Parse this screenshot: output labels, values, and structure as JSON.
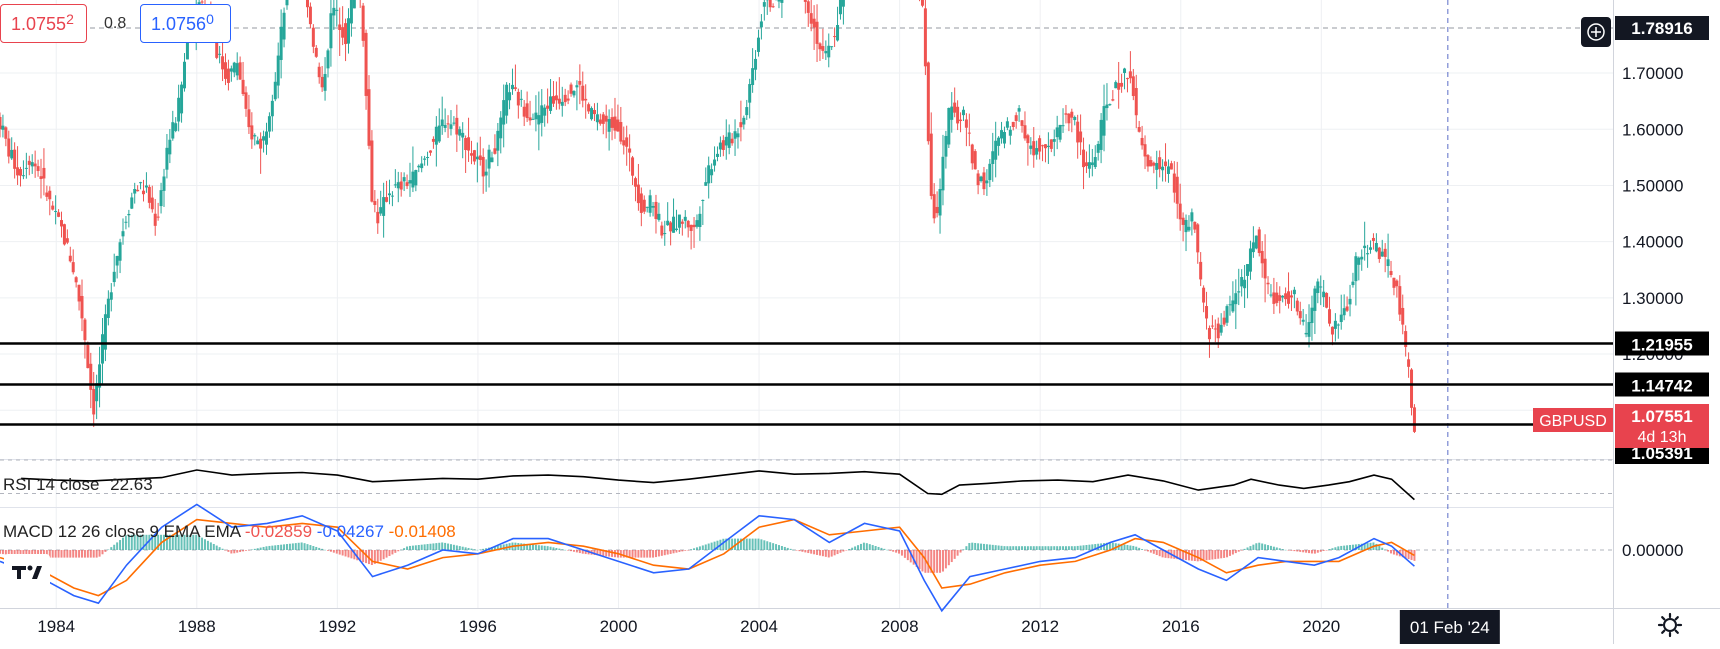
{
  "header": {
    "bid": "1.0755",
    "bid_sup": "2",
    "spread": "0.8",
    "ask": "1.0756",
    "ask_sup": "0"
  },
  "symbol_tag": {
    "symbol": "GBPUSD",
    "price": "1.07551",
    "countdown": "4d 13h"
  },
  "crosshair_price": "1.78916",
  "date_tag": "01 Feb '24",
  "colors": {
    "up": "#26a69a",
    "down": "#ef5350",
    "rsi": "#000000",
    "macd": "#2962ff",
    "signal": "#ff6d00",
    "level_tag_bg": "#000000",
    "symbol_tag_bg": "#e8434e"
  },
  "indicators": {
    "rsi": {
      "name": "RSI",
      "params": "14 close",
      "value": "22.63"
    },
    "macd": {
      "name": "MACD",
      "params": "12 26 close 9 EMA EMA",
      "hist": "-0.02859",
      "macd": "-0.04267",
      "signal": "-0.01408"
    }
  },
  "chart_data": {
    "type": "candlestick",
    "symbol": "GBPUSD",
    "interval": "monthly",
    "x_tick_labels": [
      "1984",
      "1988",
      "1992",
      "1996",
      "2000",
      "2004",
      "2008",
      "2012",
      "2016",
      "2020"
    ],
    "x_ticks": [
      1984,
      1988,
      1992,
      1996,
      2000,
      2004,
      2008,
      2012,
      2016,
      2020
    ],
    "xlim": [
      1982.4,
      2028.3
    ],
    "price_axis": {
      "ticks": [
        1.1,
        1.2,
        1.3,
        1.4,
        1.5,
        1.6,
        1.7
      ],
      "tick_labels": [
        "1.10000",
        "1.20000",
        "1.30000",
        "1.40000",
        "1.50000",
        "1.60000",
        "1.70000"
      ],
      "ylim": [
        1.015,
        1.83
      ]
    },
    "horizontal_levels": [
      "1.21955",
      "1.14742",
      "1.05391"
    ],
    "last_bar_x": 2022.65,
    "time_marker_x": 2023.6,
    "price_path": [
      [
        1982.4,
        1.62
      ],
      [
        1982.7,
        1.56
      ],
      [
        1983.0,
        1.52
      ],
      [
        1983.3,
        1.55
      ],
      [
        1983.6,
        1.52
      ],
      [
        1983.9,
        1.46
      ],
      [
        1984.2,
        1.42
      ],
      [
        1984.5,
        1.36
      ],
      [
        1984.8,
        1.26
      ],
      [
        1985.1,
        1.1
      ],
      [
        1985.4,
        1.24
      ],
      [
        1985.7,
        1.36
      ],
      [
        1986.0,
        1.44
      ],
      [
        1986.3,
        1.5
      ],
      [
        1986.6,
        1.49
      ],
      [
        1986.9,
        1.43
      ],
      [
        1987.2,
        1.57
      ],
      [
        1987.5,
        1.63
      ],
      [
        1987.8,
        1.77
      ],
      [
        1988.2,
        1.84
      ],
      [
        1988.4,
        1.82
      ],
      [
        1988.6,
        1.74
      ],
      [
        1988.9,
        1.69
      ],
      [
        1989.2,
        1.72
      ],
      [
        1989.5,
        1.6
      ],
      [
        1989.9,
        1.57
      ],
      [
        1990.3,
        1.7
      ],
      [
        1990.7,
        1.9
      ],
      [
        1990.9,
        1.96
      ],
      [
        1991.3,
        1.78
      ],
      [
        1991.6,
        1.66
      ],
      [
        1991.9,
        1.82
      ],
      [
        1992.3,
        1.76
      ],
      [
        1992.6,
        1.9
      ],
      [
        1992.8,
        1.75
      ],
      [
        1993.0,
        1.49
      ],
      [
        1993.2,
        1.44
      ],
      [
        1993.5,
        1.49
      ],
      [
        1993.9,
        1.5
      ],
      [
        1994.3,
        1.52
      ],
      [
        1994.7,
        1.57
      ],
      [
        1995.1,
        1.62
      ],
      [
        1995.5,
        1.6
      ],
      [
        1995.9,
        1.55
      ],
      [
        1996.2,
        1.53
      ],
      [
        1996.6,
        1.58
      ],
      [
        1996.9,
        1.68
      ],
      [
        1997.3,
        1.64
      ],
      [
        1997.7,
        1.62
      ],
      [
        1998.1,
        1.65
      ],
      [
        1998.5,
        1.66
      ],
      [
        1998.9,
        1.68
      ],
      [
        1999.2,
        1.63
      ],
      [
        1999.6,
        1.61
      ],
      [
        2000.0,
        1.61
      ],
      [
        2000.3,
        1.56
      ],
      [
        2000.7,
        1.46
      ],
      [
        2001.0,
        1.47
      ],
      [
        2001.3,
        1.42
      ],
      [
        2001.6,
        1.43
      ],
      [
        2001.9,
        1.44
      ],
      [
        2002.2,
        1.42
      ],
      [
        2002.6,
        1.53
      ],
      [
        2002.9,
        1.57
      ],
      [
        2003.2,
        1.58
      ],
      [
        2003.6,
        1.62
      ],
      [
        2003.9,
        1.72
      ],
      [
        2004.2,
        1.84
      ],
      [
        2004.5,
        1.82
      ],
      [
        2004.8,
        1.87
      ],
      [
        2005.1,
        1.9
      ],
      [
        2005.4,
        1.83
      ],
      [
        2005.7,
        1.76
      ],
      [
        2005.9,
        1.72
      ],
      [
        2006.2,
        1.77
      ],
      [
        2006.5,
        1.87
      ],
      [
        2006.9,
        1.98
      ],
      [
        2007.3,
        2.0
      ],
      [
        2007.7,
        2.03
      ],
      [
        2007.9,
        2.05
      ],
      [
        2008.3,
        1.98
      ],
      [
        2008.6,
        1.88
      ],
      [
        2008.75,
        1.76
      ],
      [
        2008.85,
        1.6
      ],
      [
        2008.95,
        1.46
      ],
      [
        2009.1,
        1.45
      ],
      [
        2009.3,
        1.55
      ],
      [
        2009.5,
        1.66
      ],
      [
        2009.7,
        1.62
      ],
      [
        2009.9,
        1.62
      ],
      [
        2010.2,
        1.52
      ],
      [
        2010.5,
        1.5
      ],
      [
        2010.8,
        1.58
      ],
      [
        2011.1,
        1.6
      ],
      [
        2011.4,
        1.63
      ],
      [
        2011.8,
        1.56
      ],
      [
        2012.1,
        1.58
      ],
      [
        2012.4,
        1.57
      ],
      [
        2012.7,
        1.62
      ],
      [
        2013.0,
        1.62
      ],
      [
        2013.3,
        1.53
      ],
      [
        2013.6,
        1.55
      ],
      [
        2013.9,
        1.64
      ],
      [
        2014.3,
        1.68
      ],
      [
        2014.6,
        1.71
      ],
      [
        2014.8,
        1.6
      ],
      [
        2015.1,
        1.53
      ],
      [
        2015.4,
        1.54
      ],
      [
        2015.8,
        1.52
      ],
      [
        2016.1,
        1.42
      ],
      [
        2016.4,
        1.44
      ],
      [
        2016.6,
        1.33
      ],
      [
        2016.8,
        1.24
      ],
      [
        2017.1,
        1.24
      ],
      [
        2017.4,
        1.28
      ],
      [
        2017.7,
        1.32
      ],
      [
        2017.9,
        1.35
      ],
      [
        2018.2,
        1.41
      ],
      [
        2018.5,
        1.32
      ],
      [
        2018.8,
        1.29
      ],
      [
        2019.1,
        1.3
      ],
      [
        2019.3,
        1.3
      ],
      [
        2019.6,
        1.23
      ],
      [
        2019.9,
        1.32
      ],
      [
        2020.1,
        1.31
      ],
      [
        2020.3,
        1.24
      ],
      [
        2020.5,
        1.25
      ],
      [
        2020.8,
        1.29
      ],
      [
        2021.0,
        1.36
      ],
      [
        2021.3,
        1.39
      ],
      [
        2021.5,
        1.4
      ],
      [
        2021.8,
        1.37
      ],
      [
        2022.0,
        1.35
      ],
      [
        2022.2,
        1.31
      ],
      [
        2022.4,
        1.22
      ],
      [
        2022.55,
        1.16
      ],
      [
        2022.65,
        1.0755
      ]
    ],
    "rsi_series": {
      "name": "RSI 14 close",
      "last_value": 22.63,
      "points": [
        [
          1983.0,
          48
        ],
        [
          1984.0,
          46
        ],
        [
          1985.0,
          45
        ],
        [
          1986.0,
          47
        ],
        [
          1987.0,
          49
        ],
        [
          1988.0,
          58
        ],
        [
          1988.5,
          55
        ],
        [
          1989.0,
          52
        ],
        [
          1990.0,
          54
        ],
        [
          1991.0,
          55
        ],
        [
          1992.0,
          52
        ],
        [
          1993.0,
          44
        ],
        [
          1994.0,
          46
        ],
        [
          1995.0,
          48
        ],
        [
          1996.0,
          47
        ],
        [
          1997.0,
          51
        ],
        [
          1998.0,
          52
        ],
        [
          1999.0,
          50
        ],
        [
          2000.0,
          46
        ],
        [
          2001.0,
          43
        ],
        [
          2002.0,
          47
        ],
        [
          2003.0,
          52
        ],
        [
          2004.0,
          57
        ],
        [
          2005.0,
          53
        ],
        [
          2006.0,
          54
        ],
        [
          2007.0,
          56
        ],
        [
          2008.0,
          53
        ],
        [
          2008.8,
          30
        ],
        [
          2009.2,
          29
        ],
        [
          2009.7,
          40
        ],
        [
          2010.5,
          42
        ],
        [
          2011.5,
          45
        ],
        [
          2012.5,
          46
        ],
        [
          2013.5,
          44
        ],
        [
          2014.5,
          52
        ],
        [
          2015.5,
          45
        ],
        [
          2016.5,
          34
        ],
        [
          2017.5,
          40
        ],
        [
          2018.0,
          47
        ],
        [
          2018.8,
          40
        ],
        [
          2019.5,
          36
        ],
        [
          2020.2,
          40
        ],
        [
          2020.8,
          44
        ],
        [
          2021.5,
          52
        ],
        [
          2022.0,
          47
        ],
        [
          2022.65,
          22.63
        ]
      ]
    },
    "macd_series": {
      "name": "MACD 12 26 close 9 EMA EMA",
      "last_values": {
        "histogram": -0.02859,
        "macd": -0.04267,
        "signal": -0.01408
      },
      "axis_ticks": [
        0.0
      ],
      "axis_labels": [
        "0.00000"
      ],
      "macd_points": [
        [
          1982.4,
          -0.03
        ],
        [
          1983.5,
          -0.07
        ],
        [
          1984.5,
          -0.12
        ],
        [
          1985.2,
          -0.14
        ],
        [
          1986.0,
          -0.04
        ],
        [
          1987.0,
          0.06
        ],
        [
          1988.0,
          0.12
        ],
        [
          1989.0,
          0.06
        ],
        [
          1990.0,
          0.07
        ],
        [
          1991.0,
          0.09
        ],
        [
          1992.0,
          0.05
        ],
        [
          1993.0,
          -0.07
        ],
        [
          1994.0,
          -0.04
        ],
        [
          1995.0,
          0.0
        ],
        [
          1996.0,
          -0.01
        ],
        [
          1997.0,
          0.03
        ],
        [
          1998.0,
          0.03
        ],
        [
          1999.0,
          0.0
        ],
        [
          2000.0,
          -0.03
        ],
        [
          2001.0,
          -0.06
        ],
        [
          2002.0,
          -0.05
        ],
        [
          2003.0,
          0.02
        ],
        [
          2004.0,
          0.09
        ],
        [
          2005.0,
          0.08
        ],
        [
          2006.0,
          0.02
        ],
        [
          2007.0,
          0.07
        ],
        [
          2008.0,
          0.05
        ],
        [
          2008.7,
          -0.08
        ],
        [
          2009.2,
          -0.16
        ],
        [
          2010.0,
          -0.07
        ],
        [
          2011.0,
          -0.05
        ],
        [
          2012.0,
          -0.03
        ],
        [
          2013.0,
          -0.02
        ],
        [
          2014.0,
          0.02
        ],
        [
          2014.7,
          0.04
        ],
        [
          2015.5,
          0.0
        ],
        [
          2016.5,
          -0.05
        ],
        [
          2017.3,
          -0.08
        ],
        [
          2018.2,
          -0.02
        ],
        [
          2019.0,
          -0.03
        ],
        [
          2019.8,
          -0.04
        ],
        [
          2020.5,
          -0.02
        ],
        [
          2021.5,
          0.03
        ],
        [
          2022.0,
          0.01
        ],
        [
          2022.65,
          -0.04267
        ]
      ],
      "signal_points": [
        [
          1982.4,
          -0.02
        ],
        [
          1983.5,
          -0.05
        ],
        [
          1984.5,
          -0.1
        ],
        [
          1985.2,
          -0.12
        ],
        [
          1986.0,
          -0.08
        ],
        [
          1987.0,
          0.02
        ],
        [
          1988.0,
          0.08
        ],
        [
          1989.0,
          0.07
        ],
        [
          1990.0,
          0.06
        ],
        [
          1991.0,
          0.07
        ],
        [
          1992.0,
          0.06
        ],
        [
          1993.0,
          -0.03
        ],
        [
          1994.0,
          -0.05
        ],
        [
          1995.0,
          -0.02
        ],
        [
          1996.0,
          -0.01
        ],
        [
          1997.0,
          0.01
        ],
        [
          1998.0,
          0.02
        ],
        [
          1999.0,
          0.01
        ],
        [
          2000.0,
          -0.01
        ],
        [
          2001.0,
          -0.04
        ],
        [
          2002.0,
          -0.05
        ],
        [
          2003.0,
          -0.01
        ],
        [
          2004.0,
          0.06
        ],
        [
          2005.0,
          0.08
        ],
        [
          2006.0,
          0.04
        ],
        [
          2007.0,
          0.05
        ],
        [
          2008.0,
          0.06
        ],
        [
          2008.7,
          -0.02
        ],
        [
          2009.2,
          -0.1
        ],
        [
          2010.0,
          -0.09
        ],
        [
          2011.0,
          -0.06
        ],
        [
          2012.0,
          -0.04
        ],
        [
          2013.0,
          -0.03
        ],
        [
          2014.0,
          0.0
        ],
        [
          2014.7,
          0.03
        ],
        [
          2015.5,
          0.02
        ],
        [
          2016.5,
          -0.02
        ],
        [
          2017.3,
          -0.06
        ],
        [
          2018.2,
          -0.04
        ],
        [
          2019.0,
          -0.03
        ],
        [
          2019.8,
          -0.03
        ],
        [
          2020.5,
          -0.03
        ],
        [
          2021.5,
          0.01
        ],
        [
          2022.0,
          0.02
        ],
        [
          2022.65,
          -0.01408
        ]
      ]
    },
    "grid": true,
    "legend": "top-left"
  }
}
